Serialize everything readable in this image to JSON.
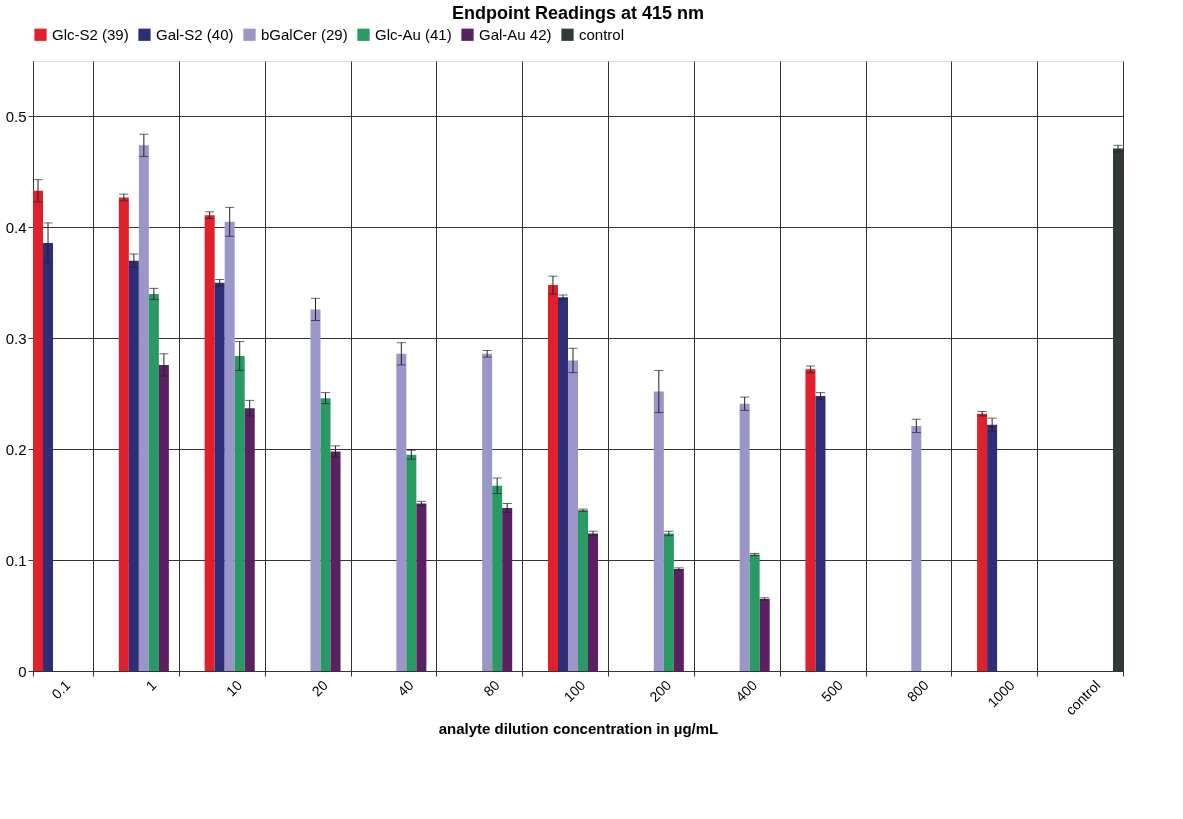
{
  "chart_data": {
    "type": "bar",
    "title": "Endpoint Readings at 415 nm",
    "xlabel": "analyte dilution concentration in µg/mL",
    "categories": [
      "0.1",
      "1",
      "10",
      "20",
      "40",
      "80",
      "100",
      "200",
      "400",
      "500",
      "800",
      "1000",
      "control"
    ],
    "series": [
      {
        "name": "Glc-S2 (39)",
        "color": "#e0202a",
        "values": [
          0.433,
          0.427,
          0.411,
          null,
          null,
          null,
          0.348,
          null,
          null,
          0.272,
          null,
          0.232,
          null
        ],
        "errors": [
          0.01,
          0.003,
          0.003,
          null,
          null,
          null,
          0.008,
          null,
          null,
          0.003,
          null,
          0.002,
          null
        ]
      },
      {
        "name": "Gal-S2 (40)",
        "color": "#2e2e78",
        "values": [
          0.386,
          0.37,
          0.35,
          null,
          null,
          null,
          0.337,
          null,
          null,
          0.248,
          null,
          0.222,
          null
        ],
        "errors": [
          0.018,
          0.006,
          0.003,
          null,
          null,
          null,
          0.002,
          null,
          null,
          0.003,
          null,
          0.006,
          null
        ]
      },
      {
        "name": "bGalCer (29)",
        "color": "#9b96c8",
        "values": [
          null,
          0.474,
          0.405,
          0.326,
          0.286,
          0.286,
          0.28,
          0.252,
          0.241,
          null,
          0.221,
          null,
          null
        ],
        "errors": [
          null,
          0.01,
          0.013,
          0.01,
          0.01,
          0.003,
          0.011,
          0.019,
          0.006,
          null,
          0.006,
          null,
          null
        ]
      },
      {
        "name": "Glc-Au (41)",
        "color": "#2a9a64",
        "values": [
          null,
          0.34,
          0.284,
          0.246,
          0.195,
          0.167,
          0.145,
          0.124,
          0.105,
          null,
          null,
          null,
          null
        ],
        "errors": [
          null,
          0.005,
          0.013,
          0.005,
          0.004,
          0.007,
          0.001,
          0.002,
          0.001,
          null,
          null,
          null,
          null
        ]
      },
      {
        "name": "Gal-Au 42)",
        "color": "#5a2062",
        "values": [
          null,
          0.276,
          0.237,
          0.198,
          0.151,
          0.147,
          0.124,
          0.092,
          0.065,
          null,
          null,
          null,
          null
        ],
        "errors": [
          null,
          0.01,
          0.007,
          0.005,
          0.002,
          0.004,
          0.002,
          0.001,
          0.001,
          null,
          null,
          null,
          null
        ]
      },
      {
        "name": "control",
        "color": "#303a3a",
        "values": [
          null,
          null,
          null,
          null,
          null,
          null,
          null,
          null,
          null,
          null,
          null,
          null,
          0.471
        ],
        "errors": [
          null,
          null,
          null,
          null,
          null,
          null,
          null,
          null,
          null,
          null,
          null,
          null,
          0.003
        ]
      }
    ],
    "ylim": [
      0,
      0.55
    ],
    "yticks": [
      0,
      0.1,
      0.2,
      0.3,
      0.4,
      0.5
    ],
    "grid": true,
    "legend": "top"
  }
}
